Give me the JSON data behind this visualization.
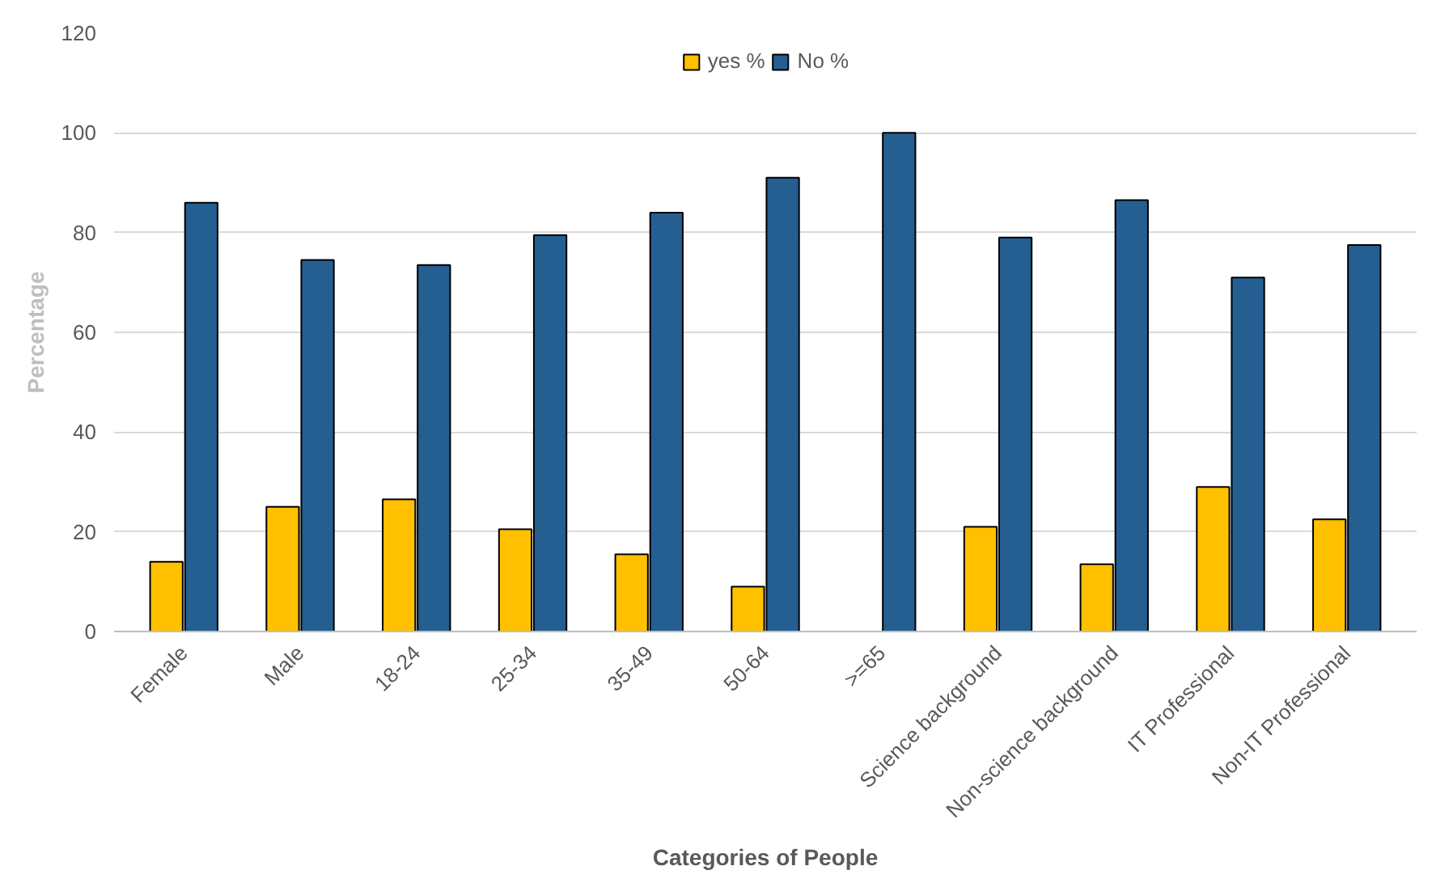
{
  "chart_data": {
    "type": "bar",
    "xlabel": "Categories of People",
    "ylabel": "Percentage",
    "categories": [
      "Female",
      "Male",
      "18-24",
      "25-34",
      "35-49",
      "50-64",
      ">=65",
      "Science background",
      "Non-science background",
      "IT Professional",
      "Non-IT Professional"
    ],
    "series": [
      {
        "name": "yes %",
        "color": "#ffc000",
        "values": [
          14,
          25,
          26.5,
          20.5,
          15.5,
          9,
          0,
          21,
          13.5,
          29,
          22.5
        ]
      },
      {
        "name": "No %",
        "color": "#255e91",
        "values": [
          86,
          74.5,
          73.5,
          79.5,
          84,
          91,
          100,
          79,
          86.5,
          71,
          77.5
        ]
      }
    ],
    "ylim": [
      0,
      120
    ],
    "yticks": [
      0,
      20,
      40,
      60,
      80,
      100,
      120
    ],
    "grid": "y",
    "legend": "top"
  }
}
